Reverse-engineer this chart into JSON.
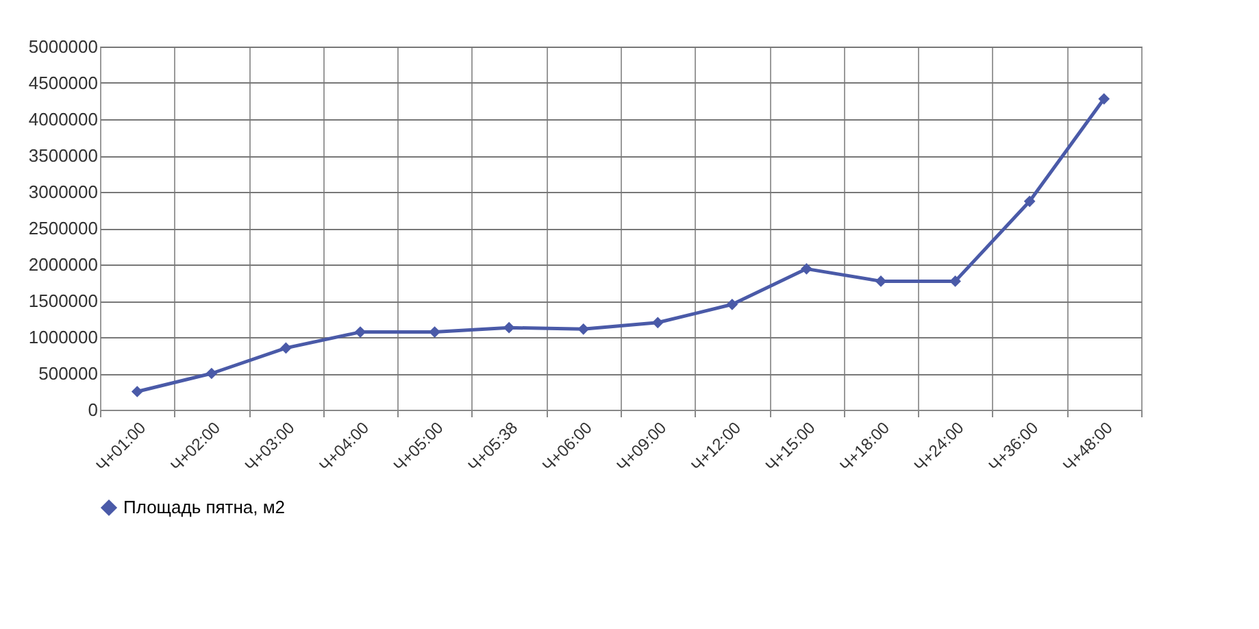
{
  "chart_data": {
    "type": "line",
    "categories": [
      "Ч+01:00",
      "Ч+02:00",
      "Ч+03:00",
      "Ч+04:00",
      "Ч+05:00",
      "Ч+05:38",
      "Ч+06:00",
      "Ч+09:00",
      "Ч+12:00",
      "Ч+15:00",
      "Ч+18:00",
      "Ч+24:00",
      "Ч+36:00",
      "Ч+48:00"
    ],
    "series": [
      {
        "name": "Площадь пятна, м2",
        "color": "#4a5aa8",
        "values": [
          250000,
          500000,
          850000,
          1070000,
          1070000,
          1130000,
          1110000,
          1200000,
          1450000,
          1940000,
          1770000,
          1770000,
          2870000,
          4280000
        ]
      }
    ],
    "ylim": [
      0,
      5000000
    ],
    "yticks": [
      0,
      500000,
      1000000,
      1500000,
      2000000,
      2500000,
      3000000,
      3500000,
      4000000,
      4500000,
      5000000
    ],
    "grid": true,
    "legend": "bottom",
    "marker": "diamond",
    "line_style": "solid"
  }
}
